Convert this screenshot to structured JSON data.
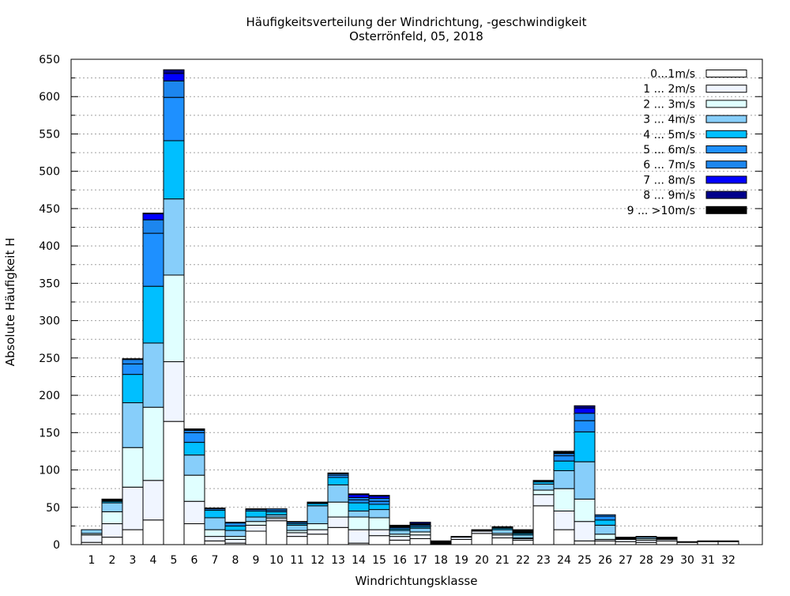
{
  "chart_data": {
    "type": "bar",
    "stacked": true,
    "title": "Häufigkeitsverteilung der Windrichtung, -geschwindigkeit",
    "subtitle": "Osterrönfeld, 05, 2018",
    "xlabel": "Windrichtungsklasse",
    "ylabel": "Absolute Häufigkeit H",
    "ylim": [
      0,
      650
    ],
    "yticks": [
      0,
      50,
      100,
      150,
      200,
      250,
      300,
      350,
      400,
      450,
      500,
      550,
      600,
      650
    ],
    "grid": true,
    "legend_position": "top-right",
    "categories": [
      "1",
      "2",
      "3",
      "4",
      "5",
      "6",
      "7",
      "8",
      "9",
      "10",
      "11",
      "12",
      "13",
      "14",
      "15",
      "16",
      "17",
      "18",
      "19",
      "20",
      "21",
      "22",
      "23",
      "24",
      "25",
      "26",
      "27",
      "28",
      "29",
      "30",
      "31",
      "32"
    ],
    "series": [
      {
        "name": "0...1m/s",
        "color": "#ffffff",
        "values": [
          3,
          10,
          20,
          33,
          165,
          28,
          5,
          2,
          18,
          32,
          11,
          14,
          23,
          2,
          12,
          6,
          8,
          1,
          7,
          15,
          9,
          6,
          52,
          20,
          5,
          5,
          4,
          3,
          5,
          3,
          4,
          4
        ]
      },
      {
        "name": "1 ... 2m/s",
        "color": "#f0f5ff",
        "values": [
          10,
          18,
          57,
          53,
          80,
          30,
          6,
          5,
          8,
          3,
          5,
          6,
          14,
          18,
          8,
          5,
          5,
          1,
          3,
          3,
          4,
          2,
          15,
          25,
          26,
          2,
          3,
          3,
          2,
          1,
          1,
          1
        ]
      },
      {
        "name": "2 ... 3m/s",
        "color": "#e0ffff",
        "values": [
          2,
          16,
          53,
          98,
          116,
          35,
          9,
          4,
          5,
          2,
          3,
          8,
          20,
          17,
          16,
          3,
          4,
          1,
          1,
          0,
          2,
          1,
          6,
          30,
          30,
          7,
          1,
          2,
          1,
          0,
          0,
          0
        ]
      },
      {
        "name": "3 ... 4m/s",
        "color": "#87cefa",
        "values": [
          5,
          12,
          60,
          86,
          102,
          27,
          16,
          8,
          6,
          3,
          7,
          24,
          23,
          8,
          11,
          5,
          5,
          1,
          0,
          0,
          5,
          4,
          8,
          24,
          50,
          12,
          1,
          2,
          0,
          0,
          0,
          0
        ]
      },
      {
        "name": "4 ... 5m/s",
        "color": "#00bfff",
        "values": [
          0,
          2,
          38,
          76,
          78,
          17,
          10,
          6,
          8,
          4,
          2,
          3,
          10,
          11,
          7,
          2,
          2,
          0,
          0,
          0,
          2,
          2,
          3,
          13,
          40,
          7,
          1,
          1,
          0,
          0,
          0,
          0
        ]
      },
      {
        "name": "5 ... 6m/s",
        "color": "#1e90ff",
        "values": [
          0,
          1,
          14,
          71,
          58,
          13,
          2,
          4,
          2,
          2,
          2,
          1,
          3,
          4,
          4,
          2,
          2,
          0,
          0,
          0,
          1,
          1,
          1,
          7,
          15,
          5,
          0,
          0,
          0,
          0,
          0,
          0
        ]
      },
      {
        "name": "6 ... 7m/s",
        "color": "#1c86ee",
        "values": [
          0,
          1,
          6,
          18,
          22,
          3,
          1,
          1,
          1,
          2,
          1,
          1,
          2,
          3,
          4,
          1,
          1,
          0,
          0,
          0,
          1,
          1,
          1,
          3,
          10,
          2,
          0,
          0,
          0,
          0,
          0,
          0
        ]
      },
      {
        "name": "7 ... 8m/s",
        "color": "#0000ff",
        "values": [
          0,
          0,
          1,
          8,
          10,
          1,
          0,
          0,
          0,
          0,
          0,
          0,
          0,
          4,
          3,
          1,
          1,
          0,
          0,
          0,
          0,
          0,
          0,
          1,
          7,
          0,
          0,
          0,
          0,
          0,
          0,
          0
        ]
      },
      {
        "name": "8 ... 9m/s",
        "color": "#00008b",
        "values": [
          0,
          0,
          0,
          1,
          5,
          1,
          0,
          0,
          0,
          0,
          0,
          0,
          0,
          1,
          1,
          1,
          2,
          0,
          0,
          0,
          0,
          0,
          0,
          1,
          3,
          0,
          0,
          0,
          0,
          0,
          0,
          0
        ]
      },
      {
        "name": "9 ... >10m/s",
        "color": "#000000",
        "values": [
          0,
          1,
          0,
          0,
          0,
          0,
          0,
          0,
          0,
          0,
          0,
          0,
          1,
          0,
          0,
          0,
          0,
          1,
          0,
          2,
          0,
          3,
          0,
          1,
          0,
          0,
          0,
          0,
          2,
          0,
          0,
          0
        ]
      }
    ]
  }
}
